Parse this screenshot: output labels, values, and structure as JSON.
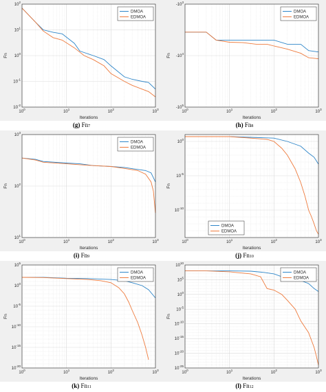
{
  "colors": {
    "dmoa": "#2d85c8",
    "edmoa": "#ee7a3c",
    "axes_bg": "#f0f0f0",
    "plot_bg": "#ffffff",
    "grid": "#d9d9d9"
  },
  "chart_data": [
    {
      "id": "g",
      "type": "line",
      "caption_letter": "(g)",
      "caption_fn": "Fn",
      "caption_sub": "7",
      "xlabel": "Iterations",
      "ylabel": "Fn",
      "xscale": "log",
      "yscale": "log",
      "xlim": [
        1,
        1000
      ],
      "ylim": [
        0.01,
        100
      ],
      "legend": "top-right",
      "grid": true,
      "xticks": [
        "10^0",
        "10^1",
        "10^2",
        "10^3"
      ],
      "yticks": [
        "10^2",
        "10^1",
        "10^0",
        "10^-1",
        "10^-2"
      ],
      "series": [
        {
          "name": "DMOA",
          "points": [
            [
              1,
              70
            ],
            [
              2,
              20
            ],
            [
              3,
              10
            ],
            [
              5,
              8
            ],
            [
              8,
              7
            ],
            [
              15,
              3
            ],
            [
              20,
              1.5
            ],
            [
              40,
              1
            ],
            [
              70,
              0.7
            ],
            [
              100,
              0.4
            ],
            [
              200,
              0.15
            ],
            [
              300,
              0.12
            ],
            [
              500,
              0.1
            ],
            [
              700,
              0.09
            ],
            [
              1000,
              0.05
            ]
          ]
        },
        {
          "name": "EDMOA",
          "points": [
            [
              1,
              70
            ],
            [
              2,
              20
            ],
            [
              3,
              9
            ],
            [
              5,
              5
            ],
            [
              8,
              4
            ],
            [
              15,
              2
            ],
            [
              25,
              1
            ],
            [
              40,
              0.7
            ],
            [
              70,
              0.4
            ],
            [
              100,
              0.2
            ],
            [
              200,
              0.1
            ],
            [
              300,
              0.07
            ],
            [
              500,
              0.05
            ],
            [
              700,
              0.04
            ],
            [
              1000,
              0.025
            ]
          ]
        }
      ]
    },
    {
      "id": "h",
      "type": "line",
      "caption_letter": "(h)",
      "caption_fn": "Fn",
      "caption_sub": "8",
      "xlabel": "Iterations",
      "ylabel": "Fn",
      "xscale": "log",
      "yscale": "log",
      "xlim": [
        1,
        1000
      ],
      "ylim": [
        -100000,
        -1000
      ],
      "legend": "top-right",
      "grid": true,
      "xticks": [
        "10^0",
        "10^1",
        "10^2",
        "10^3"
      ],
      "yticks": [
        "-10^3",
        "-10^4",
        "-10^5"
      ],
      "series": [
        {
          "name": "DMOA",
          "points": [
            [
              1,
              -3500
            ],
            [
              3,
              -3500
            ],
            [
              5,
              -5000
            ],
            [
              8,
              -5000
            ],
            [
              20,
              -5000
            ],
            [
              40,
              -5000
            ],
            [
              70,
              -5000
            ],
            [
              100,
              -5000
            ],
            [
              200,
              -6000
            ],
            [
              400,
              -6000
            ],
            [
              600,
              -8000
            ],
            [
              1000,
              -8500
            ]
          ]
        },
        {
          "name": "EDMOA",
          "points": [
            [
              1,
              -3500
            ],
            [
              3,
              -3500
            ],
            [
              5,
              -5000
            ],
            [
              10,
              -5500
            ],
            [
              20,
              -5600
            ],
            [
              40,
              -6000
            ],
            [
              70,
              -6000
            ],
            [
              100,
              -6500
            ],
            [
              200,
              -7500
            ],
            [
              400,
              -9000
            ],
            [
              600,
              -11000
            ],
            [
              1000,
              -11500
            ]
          ]
        }
      ]
    },
    {
      "id": "i",
      "type": "line",
      "caption_letter": "(i)",
      "caption_fn": "Fn",
      "caption_sub": "9",
      "xlabel": "Iterations",
      "ylabel": "Fn",
      "xscale": "log",
      "yscale": "log",
      "xlim": [
        1,
        1000
      ],
      "ylim": [
        10,
        1000
      ],
      "legend": "top-right",
      "grid": true,
      "xticks": [
        "10^0",
        "10^1",
        "10^2",
        "10^3"
      ],
      "yticks": [
        "10^3",
        "10^2",
        "10^1"
      ],
      "series": [
        {
          "name": "DMOA",
          "points": [
            [
              1,
              350
            ],
            [
              2,
              330
            ],
            [
              3,
              300
            ],
            [
              10,
              280
            ],
            [
              20,
              270
            ],
            [
              40,
              250
            ],
            [
              100,
              240
            ],
            [
              200,
              230
            ],
            [
              400,
              210
            ],
            [
              600,
              200
            ],
            [
              800,
              180
            ],
            [
              1000,
              120
            ]
          ]
        },
        {
          "name": "EDMOA",
          "points": [
            [
              1,
              350
            ],
            [
              2,
              320
            ],
            [
              3,
              290
            ],
            [
              10,
              270
            ],
            [
              20,
              260
            ],
            [
              40,
              250
            ],
            [
              100,
              240
            ],
            [
              200,
              220
            ],
            [
              400,
              200
            ],
            [
              600,
              170
            ],
            [
              800,
              120
            ],
            [
              900,
              80
            ],
            [
              1000,
              30
            ]
          ]
        }
      ]
    },
    {
      "id": "j",
      "type": "line",
      "caption_letter": "(j)",
      "caption_fn": "Fn",
      "caption_sub": "10",
      "xlabel": "Iterations",
      "ylabel": "Fn",
      "xscale": "log",
      "yscale": "log",
      "xlim": [
        1,
        1000
      ],
      "ylim": [
        1e-14,
        10
      ],
      "legend": "bottom-left",
      "grid": true,
      "xticks": [
        "10^0",
        "10^1",
        "10^2",
        "10^3"
      ],
      "yticks": [
        "10^0",
        "10^-5",
        "10^-10"
      ],
      "series": [
        {
          "name": "DMOA",
          "points": [
            [
              1,
              5
            ],
            [
              10,
              5
            ],
            [
              30,
              4
            ],
            [
              100,
              3
            ],
            [
              200,
              1
            ],
            [
              400,
              0.2
            ],
            [
              600,
              0.02
            ],
            [
              800,
              0.005
            ],
            [
              1000,
              0.0005
            ]
          ]
        },
        {
          "name": "EDMOA",
          "points": [
            [
              1,
              5
            ],
            [
              10,
              5
            ],
            [
              30,
              3
            ],
            [
              70,
              2
            ],
            [
              100,
              1
            ],
            [
              150,
              0.1
            ],
            [
              200,
              0.01
            ],
            [
              300,
              0.0001
            ],
            [
              400,
              1e-06
            ],
            [
              500,
              1e-08
            ],
            [
              600,
              1e-10
            ],
            [
              700,
              1e-11
            ],
            [
              800,
              1e-12
            ],
            [
              900,
              1e-13
            ],
            [
              1000,
              3e-14
            ]
          ]
        }
      ]
    },
    {
      "id": "k",
      "type": "line",
      "caption_letter": "(k)",
      "caption_fn": "Fn",
      "caption_sub": "11",
      "xlabel": "Iterations",
      "ylabel": "Fn",
      "xscale": "log",
      "yscale": "log",
      "xlim": [
        1,
        1000
      ],
      "ylim": [
        1e-20,
        100000
      ],
      "legend": "top-right",
      "grid": true,
      "xticks": [
        "10^0",
        "10^1",
        "10^2",
        "10^3"
      ],
      "yticks": [
        "10^5",
        "10^0",
        "10^-5",
        "10^-10",
        "10^-15",
        "10^-20"
      ],
      "series": [
        {
          "name": "DMOA",
          "points": [
            [
              1,
              100
            ],
            [
              3,
              100
            ],
            [
              10,
              60
            ],
            [
              30,
              50
            ],
            [
              100,
              30
            ],
            [
              200,
              15
            ],
            [
              300,
              5
            ],
            [
              500,
              1
            ],
            [
              700,
              0.1
            ],
            [
              1000,
              0.001
            ]
          ]
        },
        {
          "name": "EDMOA",
          "points": [
            [
              1,
              100
            ],
            [
              3,
              90
            ],
            [
              10,
              50
            ],
            [
              30,
              30
            ],
            [
              60,
              15
            ],
            [
              100,
              5
            ],
            [
              150,
              0.3
            ],
            [
              200,
              0.01
            ],
            [
              250,
              0.0001
            ],
            [
              300,
              1e-06
            ],
            [
              400,
              1e-09
            ],
            [
              500,
              1e-12
            ],
            [
              600,
              1e-15
            ],
            [
              700,
              1e-18
            ]
          ]
        }
      ]
    },
    {
      "id": "l",
      "type": "line",
      "caption_letter": "(l)",
      "caption_fn": "Fn",
      "caption_sub": "12",
      "xlabel": "Iterations",
      "ylabel": "Fn",
      "xscale": "log",
      "yscale": "log",
      "xlim": [
        1,
        1000
      ],
      "ylim": [
        1e-25,
        10000000000.0
      ],
      "legend": "top-right",
      "grid": true,
      "xticks": [
        "10^0",
        "10^1",
        "10^2",
        "10^3"
      ],
      "yticks": [
        "10^10",
        "10^5",
        "10^0",
        "10^-5",
        "10^-10",
        "10^-15",
        "10^-20",
        "10^-25"
      ],
      "series": [
        {
          "name": "DMOA",
          "points": [
            [
              1,
              100000000.0
            ],
            [
              3,
              100000000.0
            ],
            [
              10,
              100000000.0
            ],
            [
              30,
              80000000.0
            ],
            [
              60,
              30000000.0
            ],
            [
              100,
              10000000.0
            ],
            [
              150,
              1000000.0
            ],
            [
              200,
              500000.0
            ],
            [
              400,
              50000.0
            ],
            [
              600,
              5000
            ],
            [
              800,
              100
            ],
            [
              1000,
              10
            ]
          ]
        },
        {
          "name": "EDMOA",
          "points": [
            [
              1,
              100000000.0
            ],
            [
              3,
              100000000.0
            ],
            [
              10,
              50000000.0
            ],
            [
              30,
              10000000.0
            ],
            [
              50,
              1000000.0
            ],
            [
              70,
              100
            ],
            [
              100,
              30
            ],
            [
              150,
              1
            ],
            [
              200,
              0.01
            ],
            [
              300,
              1e-05
            ],
            [
              400,
              1e-09
            ],
            [
              600,
              1e-13
            ],
            [
              800,
              1e-18
            ],
            [
              900,
              1e-21
            ],
            [
              1000,
              1e-24
            ]
          ]
        }
      ]
    }
  ]
}
